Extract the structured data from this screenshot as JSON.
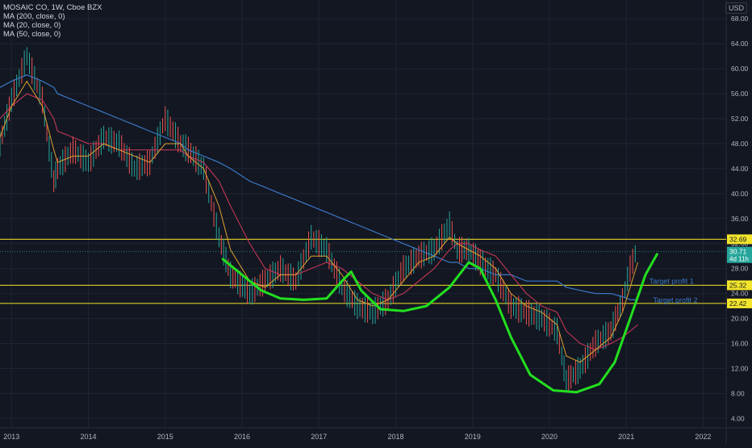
{
  "header": {
    "title": "MOSAIC CO, 1W, Cboe BZX",
    "indicators": [
      "MA (200, close, 0)",
      "MA (20, close, 0)",
      "MA (50, close, 0)"
    ],
    "currency": "USD"
  },
  "price_tags": {
    "current_price": "30.71",
    "countdown": "4d 11h",
    "levels": [
      "32.69",
      "25.32",
      "22.42"
    ]
  },
  "annotations": {
    "target_profit_1": "Target profit 1",
    "target_profit_2": "Target profit 2"
  },
  "chart_data": {
    "type": "line",
    "title": "MOSAIC CO, 1W, Cboe BZX",
    "y_ticks": [
      4,
      8,
      12,
      16,
      20,
      24,
      28,
      32,
      36,
      40,
      44,
      48,
      52,
      56,
      60,
      64,
      68
    ],
    "ylim": [
      2.5,
      71
    ],
    "x_ticks": [
      "2013",
      "2014",
      "2015",
      "2016",
      "2017",
      "2018",
      "2019",
      "2020",
      "2021",
      "2022"
    ],
    "x": [
      2012.85,
      2013.0,
      2013.2,
      2013.4,
      2013.55,
      2013.6,
      2013.8,
      2014.0,
      2014.2,
      2014.4,
      2014.6,
      2014.8,
      2015.0,
      2015.2,
      2015.3,
      2015.5,
      2015.7,
      2015.85,
      2016.1,
      2016.3,
      2016.5,
      2016.7,
      2016.9,
      2017.1,
      2017.3,
      2017.5,
      2017.7,
      2017.9,
      2018.1,
      2018.3,
      2018.5,
      2018.7,
      2018.8,
      2018.95,
      2019.1,
      2019.3,
      2019.5,
      2019.7,
      2019.9,
      2020.1,
      2020.22,
      2020.4,
      2020.6,
      2020.8,
      2020.95,
      2021.05,
      2021.15
    ],
    "series": [
      {
        "values": [
          48,
          55,
          62,
          55,
          42,
          44,
          47,
          45,
          49,
          48,
          44,
          45,
          52,
          48,
          47,
          44,
          33,
          27,
          24,
          26,
          28,
          26,
          33,
          31,
          25,
          22,
          21,
          23,
          28,
          30,
          31,
          35,
          31,
          31,
          29,
          27,
          22,
          21,
          20,
          18,
          10,
          12,
          16,
          18,
          23,
          28,
          31.5
        ]
      },
      {
        "values": [
          49,
          54,
          58,
          54,
          47,
          45,
          46,
          46,
          48,
          47,
          46,
          45,
          48,
          48,
          46,
          44,
          38,
          31,
          26,
          25,
          27,
          27,
          30,
          30,
          27,
          23,
          22,
          23,
          26,
          29,
          30,
          33,
          32,
          31,
          30,
          28,
          24,
          22,
          21,
          19,
          14,
          13,
          15,
          17,
          21,
          25,
          29
        ]
      },
      {
        "values": [
          52,
          54,
          56,
          55,
          52,
          50,
          49,
          48,
          48,
          47,
          47,
          47,
          47,
          47,
          46,
          45,
          42,
          38,
          32,
          28,
          27,
          27,
          28,
          29,
          28,
          26,
          24,
          23,
          24,
          26,
          28,
          31,
          32,
          32,
          31,
          30,
          27,
          24,
          22,
          21,
          18,
          16,
          15,
          16,
          17,
          18,
          19
        ]
      },
      {
        "values": [
          57,
          58,
          59,
          58,
          57,
          56,
          55,
          54,
          53,
          52,
          51,
          50,
          49,
          48,
          47,
          46,
          45,
          44,
          42,
          41,
          40,
          39,
          38,
          37,
          36,
          35,
          34,
          33,
          32,
          31,
          30,
          29,
          29,
          28,
          28,
          27,
          27,
          26,
          26,
          26,
          25,
          24.5,
          24,
          24,
          23.5,
          23,
          23
        ]
      }
    ],
    "horizontal_levels": [
      32.69,
      30.71,
      25.32,
      22.42
    ],
    "colors": {
      "price": "#26a69a",
      "price_down": "#ef5350",
      "ma200": "#3a78c4",
      "ma20": "#e0a030",
      "ma50": "#d23a5a",
      "level_line": "#f2e52b",
      "drawing": "#22e01f",
      "price_tag": "#26a69a",
      "annotation_text": "#3a78c4"
    }
  }
}
